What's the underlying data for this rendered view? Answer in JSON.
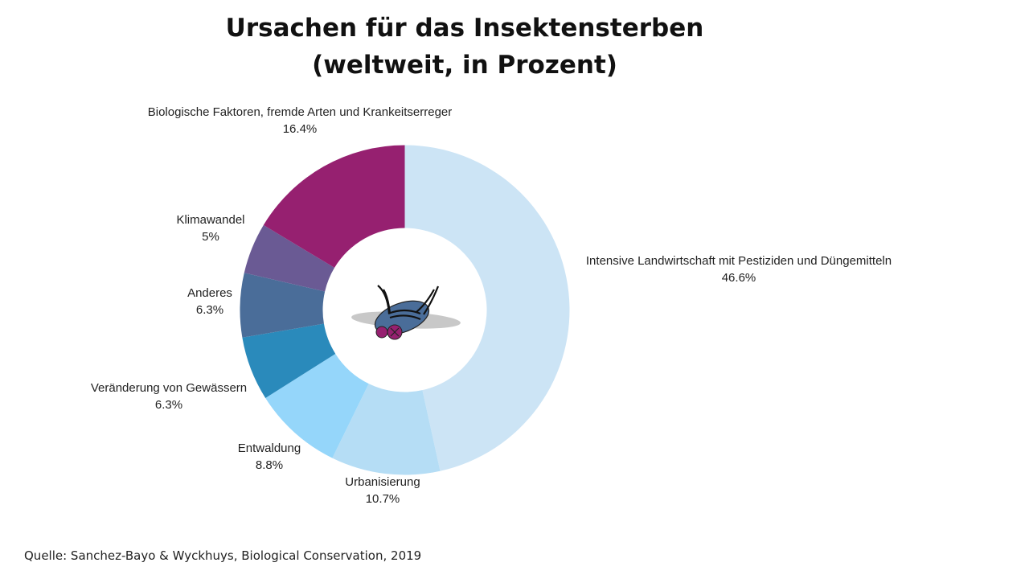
{
  "chart_data": {
    "type": "pie",
    "title": "Ursachen für das Insektensterben",
    "subtitle": "(weltweit, in Prozent)",
    "donut": true,
    "categories": [
      "Intensive Landwirtschaft mit Pestiziden und Düngemitteln",
      "Urbanisierung",
      "Entwaldung",
      "Veränderung von Gewässern",
      "Anderes",
      "Klimawandel",
      "Biologische Faktoren, fremde Arten und Krankeitserreger"
    ],
    "values": [
      46.6,
      10.7,
      8.8,
      6.3,
      6.3,
      5,
      16.4
    ],
    "value_labels": [
      "46.6%",
      "10.7%",
      "8.8%",
      "6.3%",
      "6.3%",
      "5%",
      "16.4%"
    ],
    "colors": [
      "#cce4f5",
      "#b5ddf5",
      "#95d6fa",
      "#2a8abb",
      "#4a6d99",
      "#6a5a94",
      "#962070"
    ],
    "center_icon": "dead-fly-icon"
  },
  "source": "Quelle: Sanchez-Bayo & Wyckhuys, Biological Conservation, 2019"
}
